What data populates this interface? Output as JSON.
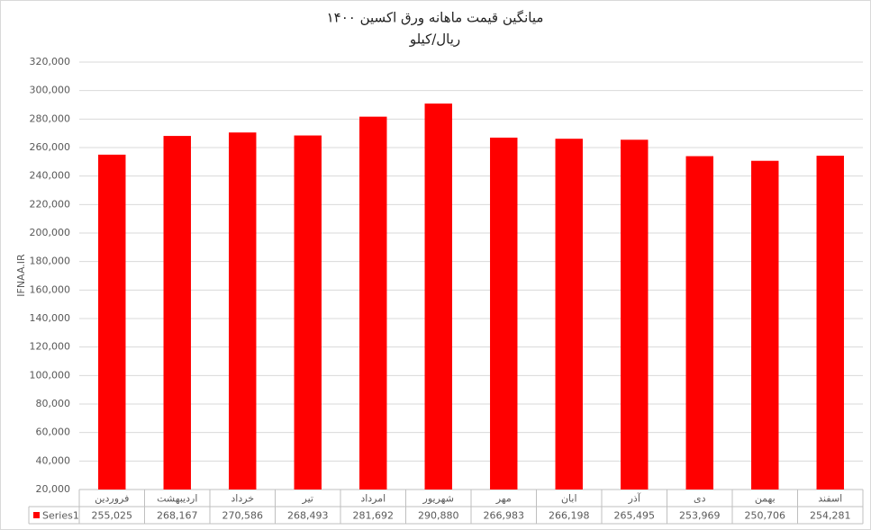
{
  "chart_data": {
    "type": "bar",
    "title": "میانگین قیمت ماهانه ورق اکسین ۱۴۰۰",
    "subtitle": "ریال/کیلو",
    "y_label": "IFNAA.IR",
    "categories": [
      "فروردین",
      "اردیبهشت",
      "خرداد",
      "تیر",
      "امرداد",
      "شهریور",
      "مهر",
      "ابان",
      "آذر",
      "دی",
      "بهمن",
      "اسفند"
    ],
    "series": [
      {
        "name": "Series1",
        "color": "#ff0000",
        "values": [
          255025,
          268167,
          270586,
          268493,
          281692,
          290880,
          266983,
          266198,
          265495,
          253969,
          250706,
          254281
        ],
        "value_labels": [
          "255,025",
          "268,167",
          "270,586",
          "268,493",
          "281,692",
          "290,880",
          "266,983",
          "266,198",
          "265,495",
          "253,969",
          "250,706",
          "254,281"
        ]
      }
    ],
    "ylim": [
      20000,
      320000
    ],
    "yticks": [
      {
        "value": 20000,
        "label": "20,000"
      },
      {
        "value": 40000,
        "label": "40,000"
      },
      {
        "value": 60000,
        "label": "60,000"
      },
      {
        "value": 80000,
        "label": "80,000"
      },
      {
        "value": 100000,
        "label": "100,000"
      },
      {
        "value": 120000,
        "label": "120,000"
      },
      {
        "value": 140000,
        "label": "140,000"
      },
      {
        "value": 160000,
        "label": "160,000"
      },
      {
        "value": 180000,
        "label": "180,000"
      },
      {
        "value": 200000,
        "label": "200,000"
      },
      {
        "value": 220000,
        "label": "220,000"
      },
      {
        "value": 240000,
        "label": "240,000"
      },
      {
        "value": 260000,
        "label": "260,000"
      },
      {
        "value": 280000,
        "label": "280,000"
      },
      {
        "value": 300000,
        "label": "300,000"
      },
      {
        "value": 320000,
        "label": "320,000"
      }
    ],
    "grid": true
  }
}
